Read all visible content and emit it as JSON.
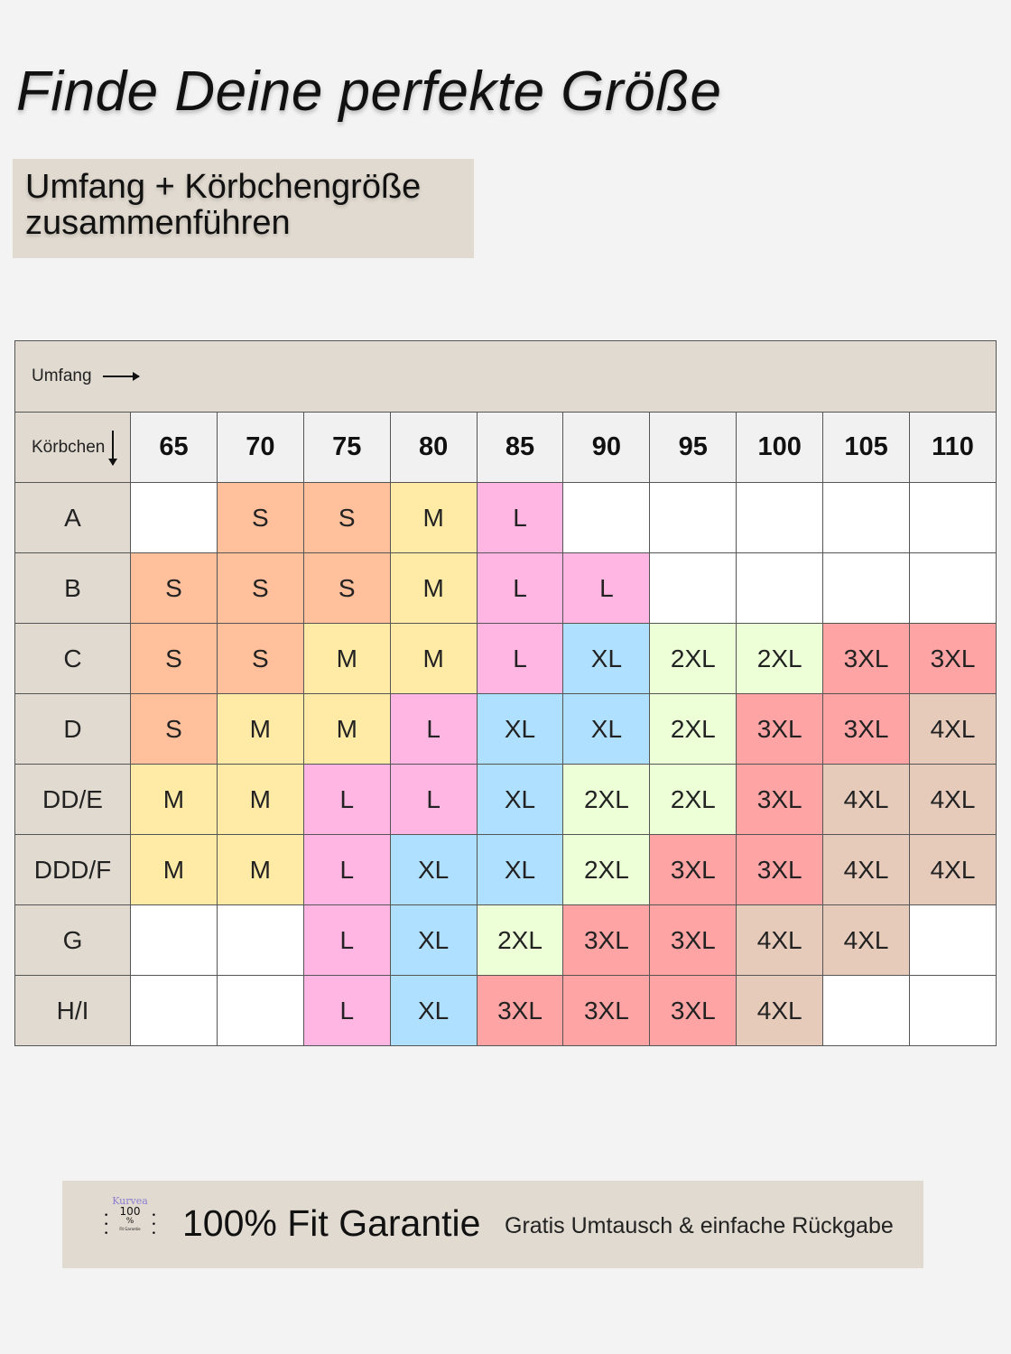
{
  "title": "Finde Deine perfekte Größe",
  "subtitle": {
    "line1": "Umfang + Körbchengröße",
    "line2": "zusammenführen"
  },
  "table": {
    "umfang_label": "Umfang",
    "koerbchen_label": "Körbchen",
    "columns": [
      "65",
      "70",
      "75",
      "80",
      "85",
      "90",
      "95",
      "100",
      "105",
      "110"
    ],
    "rows": [
      {
        "cup": "A",
        "sizes": [
          "",
          "S",
          "S",
          "M",
          "L",
          "",
          "",
          "",
          "",
          ""
        ]
      },
      {
        "cup": "B",
        "sizes": [
          "S",
          "S",
          "S",
          "M",
          "L",
          "L",
          "",
          "",
          "",
          ""
        ]
      },
      {
        "cup": "C",
        "sizes": [
          "S",
          "S",
          "M",
          "M",
          "L",
          "XL",
          "2XL",
          "2XL",
          "3XL",
          "3XL"
        ]
      },
      {
        "cup": "D",
        "sizes": [
          "S",
          "M",
          "M",
          "L",
          "XL",
          "XL",
          "2XL",
          "3XL",
          "3XL",
          "4XL"
        ]
      },
      {
        "cup": "DD/E",
        "sizes": [
          "M",
          "M",
          "L",
          "L",
          "XL",
          "2XL",
          "2XL",
          "3XL",
          "4XL",
          "4XL"
        ]
      },
      {
        "cup": "DDD/F",
        "sizes": [
          "M",
          "M",
          "L",
          "XL",
          "XL",
          "2XL",
          "3XL",
          "3XL",
          "4XL",
          "4XL"
        ]
      },
      {
        "cup": "G",
        "sizes": [
          "",
          "",
          "L",
          "XL",
          "2XL",
          "3XL",
          "3XL",
          "4XL",
          "4XL",
          ""
        ]
      },
      {
        "cup": "H/I",
        "sizes": [
          "",
          "",
          "L",
          "XL",
          "3XL",
          "3XL",
          "3XL",
          "4XL",
          "",
          ""
        ]
      }
    ],
    "size_colors": {
      "": "#ffffff",
      "S": "#ffc09b",
      "M": "#ffeaa6",
      "L": "#ffb6e2",
      "XL": "#b0e0ff",
      "2XL": "#ecffd6",
      "3XL": "#ffa4a4",
      "4XL": "#e6cbbb"
    }
  },
  "footer": {
    "badge": {
      "brand": "Kurvea",
      "number": "100",
      "percent": "%",
      "caption": "Fit Garantie"
    },
    "headline": "100% Fit Garantie",
    "tagline": "Gratis Umtausch & einfache Rückgabe"
  }
}
